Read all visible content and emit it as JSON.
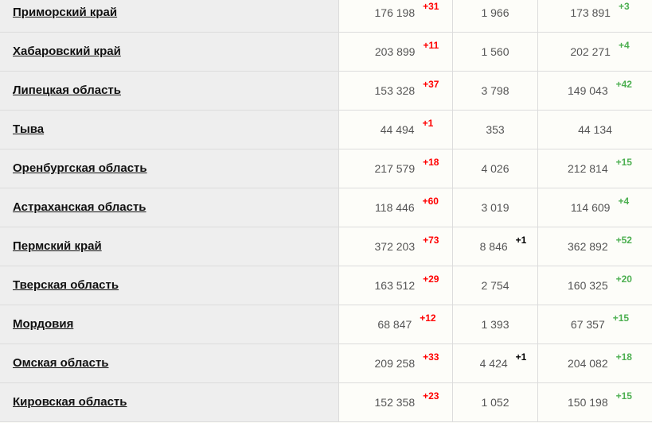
{
  "colors": {
    "cases_delta": "#ff0000",
    "deaths_delta": "#000000",
    "recovered_delta": "#4caf50"
  },
  "rows": [
    {
      "region": "Приморский край",
      "cases": "176 198",
      "cases_delta": "+31",
      "deaths": "1 966",
      "deaths_delta": "",
      "recovered": "173 891",
      "recovered_delta": "+3"
    },
    {
      "region": "Хабаровский край",
      "cases": "203 899",
      "cases_delta": "+11",
      "deaths": "1 560",
      "deaths_delta": "",
      "recovered": "202 271",
      "recovered_delta": "+4"
    },
    {
      "region": "Липецкая область",
      "cases": "153 328",
      "cases_delta": "+37",
      "deaths": "3 798",
      "deaths_delta": "",
      "recovered": "149 043",
      "recovered_delta": "+42"
    },
    {
      "region": "Тыва",
      "cases": "44 494",
      "cases_delta": "+1",
      "deaths": "353",
      "deaths_delta": "",
      "recovered": "44 134",
      "recovered_delta": ""
    },
    {
      "region": "Оренбургская область",
      "cases": "217 579",
      "cases_delta": "+18",
      "deaths": "4 026",
      "deaths_delta": "",
      "recovered": "212 814",
      "recovered_delta": "+15"
    },
    {
      "region": "Астраханская область",
      "cases": "118 446",
      "cases_delta": "+60",
      "deaths": "3 019",
      "deaths_delta": "",
      "recovered": "114 609",
      "recovered_delta": "+4"
    },
    {
      "region": "Пермский край",
      "cases": "372 203",
      "cases_delta": "+73",
      "deaths": "8 846",
      "deaths_delta": "+1",
      "recovered": "362 892",
      "recovered_delta": "+52"
    },
    {
      "region": "Тверская область",
      "cases": "163 512",
      "cases_delta": "+29",
      "deaths": "2 754",
      "deaths_delta": "",
      "recovered": "160 325",
      "recovered_delta": "+20"
    },
    {
      "region": "Мордовия",
      "cases": "68 847",
      "cases_delta": "+12",
      "deaths": "1 393",
      "deaths_delta": "",
      "recovered": "67 357",
      "recovered_delta": "+15"
    },
    {
      "region": "Омская область",
      "cases": "209 258",
      "cases_delta": "+33",
      "deaths": "4 424",
      "deaths_delta": "+1",
      "recovered": "204 082",
      "recovered_delta": "+18"
    },
    {
      "region": "Кировская область",
      "cases": "152 358",
      "cases_delta": "+23",
      "deaths": "1 052",
      "deaths_delta": "",
      "recovered": "150 198",
      "recovered_delta": "+15"
    }
  ]
}
